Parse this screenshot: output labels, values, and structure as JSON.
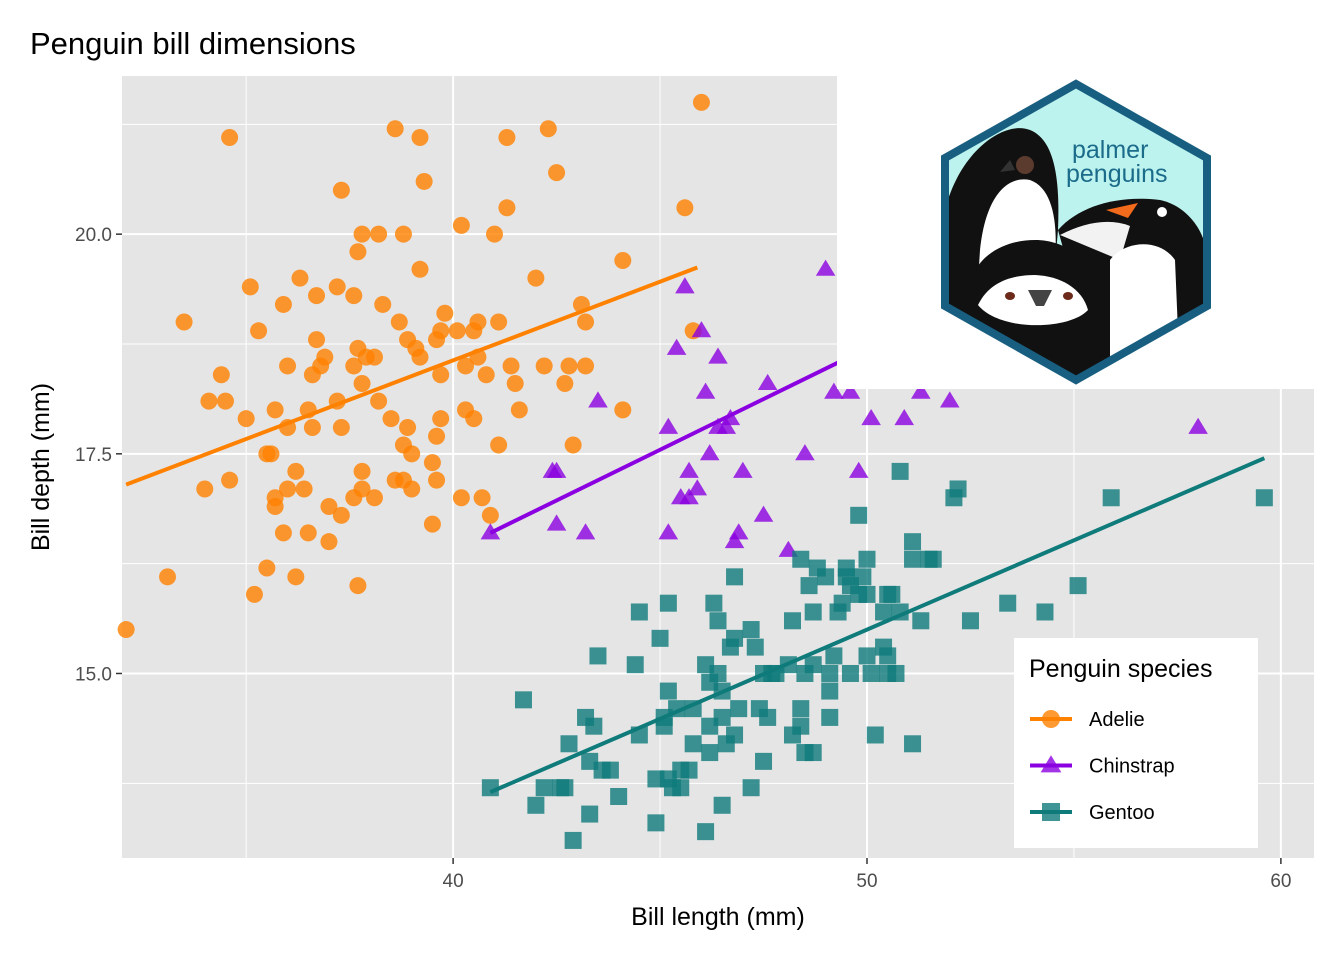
{
  "chart_data": {
    "type": "scatter",
    "title": "Penguin bill dimensions",
    "xlabel": "Bill length (mm)",
    "ylabel": "Bill depth (mm)",
    "xlim": [
      32.0,
      60.8
    ],
    "ylim": [
      12.9,
      21.8
    ],
    "x_ticks": [
      {
        "v": 40,
        "label": "40"
      },
      {
        "v": 50,
        "label": "50"
      },
      {
        "v": 60,
        "label": "60"
      }
    ],
    "y_ticks": [
      {
        "v": 15,
        "label": "15.0"
      },
      {
        "v": 17.5,
        "label": "17.5"
      },
      {
        "v": 20,
        "label": "20.0"
      }
    ],
    "grid": true,
    "legend": {
      "title": "Penguin species",
      "position": "bottom-right"
    },
    "logo_text": [
      "palmer",
      "penguins"
    ],
    "series": [
      {
        "name": "Adelie",
        "color": "#FF8100",
        "marker": "circle",
        "fit": [
          [
            32.1,
            17.15
          ],
          [
            45.9,
            19.62
          ]
        ],
        "points": [
          [
            32.1,
            15.5
          ],
          [
            33.1,
            16.1
          ],
          [
            33.5,
            19.0
          ],
          [
            34.0,
            17.1
          ],
          [
            34.1,
            18.1
          ],
          [
            34.4,
            18.4
          ],
          [
            34.5,
            18.1
          ],
          [
            34.6,
            21.1
          ],
          [
            34.6,
            17.2
          ],
          [
            35.0,
            17.9
          ],
          [
            35.1,
            19.4
          ],
          [
            35.2,
            15.9
          ],
          [
            35.3,
            18.9
          ],
          [
            35.5,
            17.5
          ],
          [
            35.5,
            16.2
          ],
          [
            35.6,
            17.5
          ],
          [
            35.7,
            16.9
          ],
          [
            35.7,
            18.0
          ],
          [
            35.7,
            17.0
          ],
          [
            35.9,
            16.6
          ],
          [
            35.9,
            19.2
          ],
          [
            36.0,
            17.8
          ],
          [
            36.0,
            17.1
          ],
          [
            36.0,
            18.5
          ],
          [
            36.2,
            16.1
          ],
          [
            36.2,
            17.3
          ],
          [
            36.3,
            19.5
          ],
          [
            36.4,
            17.1
          ],
          [
            36.5,
            18.0
          ],
          [
            36.5,
            16.6
          ],
          [
            36.6,
            17.8
          ],
          [
            36.6,
            18.4
          ],
          [
            36.7,
            18.8
          ],
          [
            36.7,
            19.3
          ],
          [
            36.8,
            18.5
          ],
          [
            36.9,
            18.6
          ],
          [
            37.0,
            16.9
          ],
          [
            37.0,
            16.5
          ],
          [
            37.2,
            18.1
          ],
          [
            37.2,
            19.4
          ],
          [
            37.3,
            20.5
          ],
          [
            37.3,
            16.8
          ],
          [
            37.3,
            17.8
          ],
          [
            37.6,
            19.3
          ],
          [
            37.6,
            17.0
          ],
          [
            37.6,
            18.5
          ],
          [
            37.7,
            18.7
          ],
          [
            37.7,
            19.8
          ],
          [
            37.7,
            16.0
          ],
          [
            37.8,
            17.1
          ],
          [
            37.8,
            18.3
          ],
          [
            37.8,
            20.0
          ],
          [
            37.8,
            17.3
          ],
          [
            37.9,
            18.6
          ],
          [
            38.1,
            18.6
          ],
          [
            38.1,
            17.0
          ],
          [
            38.2,
            18.1
          ],
          [
            38.2,
            20.0
          ],
          [
            38.3,
            19.2
          ],
          [
            38.5,
            17.9
          ],
          [
            38.6,
            21.2
          ],
          [
            38.6,
            17.2
          ],
          [
            38.7,
            19.0
          ],
          [
            38.8,
            17.2
          ],
          [
            38.8,
            17.6
          ],
          [
            38.8,
            20.0
          ],
          [
            38.9,
            17.8
          ],
          [
            38.9,
            18.8
          ],
          [
            39.0,
            17.1
          ],
          [
            39.0,
            17.5
          ],
          [
            39.1,
            18.7
          ],
          [
            39.2,
            19.6
          ],
          [
            39.2,
            18.6
          ],
          [
            39.2,
            21.1
          ],
          [
            39.3,
            20.6
          ],
          [
            39.5,
            17.4
          ],
          [
            39.5,
            16.7
          ],
          [
            39.6,
            17.7
          ],
          [
            39.6,
            18.8
          ],
          [
            39.6,
            17.2
          ],
          [
            39.7,
            18.4
          ],
          [
            39.7,
            18.9
          ],
          [
            39.7,
            17.9
          ],
          [
            39.8,
            19.1
          ],
          [
            40.1,
            18.9
          ],
          [
            40.2,
            17.0
          ],
          [
            40.2,
            20.1
          ],
          [
            40.3,
            18.0
          ],
          [
            40.3,
            18.5
          ],
          [
            40.5,
            17.9
          ],
          [
            40.5,
            18.9
          ],
          [
            40.6,
            18.6
          ],
          [
            40.6,
            19.0
          ],
          [
            40.7,
            17.0
          ],
          [
            40.8,
            18.4
          ],
          [
            40.9,
            16.8
          ],
          [
            41.0,
            20.0
          ],
          [
            41.1,
            17.6
          ],
          [
            41.1,
            19.0
          ],
          [
            41.3,
            21.1
          ],
          [
            41.3,
            20.3
          ],
          [
            41.4,
            18.5
          ],
          [
            41.5,
            18.3
          ],
          [
            41.6,
            18.0
          ],
          [
            42.0,
            19.5
          ],
          [
            42.2,
            18.5
          ],
          [
            42.3,
            21.2
          ],
          [
            42.5,
            20.7
          ],
          [
            42.7,
            18.3
          ],
          [
            42.8,
            18.5
          ],
          [
            42.9,
            17.6
          ],
          [
            43.1,
            19.2
          ],
          [
            43.2,
            18.5
          ],
          [
            43.2,
            19.0
          ],
          [
            44.1,
            19.7
          ],
          [
            44.1,
            18.0
          ],
          [
            45.6,
            20.3
          ],
          [
            45.8,
            18.9
          ],
          [
            46.0,
            21.5
          ]
        ]
      },
      {
        "name": "Chinstrap",
        "color": "#8B00E0",
        "marker": "triangle",
        "fit": [
          [
            40.9,
            16.6
          ],
          [
            51.3,
            19.0
          ]
        ],
        "points": [
          [
            40.9,
            16.6
          ],
          [
            42.4,
            17.3
          ],
          [
            42.5,
            17.3
          ],
          [
            42.5,
            16.7
          ],
          [
            43.2,
            16.6
          ],
          [
            43.5,
            18.1
          ],
          [
            45.2,
            17.8
          ],
          [
            45.2,
            16.6
          ],
          [
            45.4,
            18.7
          ],
          [
            45.5,
            17.0
          ],
          [
            45.6,
            19.4
          ],
          [
            45.7,
            17.3
          ],
          [
            45.7,
            17.0
          ],
          [
            45.9,
            17.1
          ],
          [
            46.0,
            18.9
          ],
          [
            46.1,
            18.2
          ],
          [
            46.2,
            17.5
          ],
          [
            46.4,
            17.8
          ],
          [
            46.4,
            18.6
          ],
          [
            46.6,
            17.8
          ],
          [
            46.7,
            17.9
          ],
          [
            46.8,
            16.5
          ],
          [
            46.9,
            16.6
          ],
          [
            47.0,
            17.3
          ],
          [
            47.5,
            16.8
          ],
          [
            47.6,
            18.3
          ],
          [
            48.1,
            16.4
          ],
          [
            48.5,
            17.5
          ],
          [
            49.0,
            19.6
          ],
          [
            49.2,
            18.2
          ],
          [
            49.6,
            18.2
          ],
          [
            49.8,
            17.3
          ],
          [
            50.1,
            17.9
          ],
          [
            50.9,
            17.9
          ],
          [
            51.3,
            18.2
          ],
          [
            52.0,
            18.1
          ],
          [
            58.0,
            17.8
          ]
        ]
      },
      {
        "name": "Gentoo",
        "color": "#0F7B7B",
        "marker": "square",
        "fit": [
          [
            40.9,
            13.65
          ],
          [
            59.6,
            17.45
          ]
        ],
        "points": [
          [
            40.9,
            13.7
          ],
          [
            41.7,
            14.7
          ],
          [
            42.0,
            13.5
          ],
          [
            42.2,
            13.7
          ],
          [
            42.6,
            13.7
          ],
          [
            42.7,
            13.7
          ],
          [
            42.8,
            14.2
          ],
          [
            42.9,
            13.1
          ],
          [
            43.2,
            14.5
          ],
          [
            43.3,
            13.4
          ],
          [
            43.3,
            14.0
          ],
          [
            43.4,
            14.4
          ],
          [
            43.5,
            15.2
          ],
          [
            43.6,
            13.9
          ],
          [
            43.8,
            13.9
          ],
          [
            44.0,
            13.6
          ],
          [
            44.4,
            15.1
          ],
          [
            44.5,
            15.7
          ],
          [
            44.5,
            14.3
          ],
          [
            44.9,
            13.3
          ],
          [
            44.9,
            13.8
          ],
          [
            45.0,
            15.4
          ],
          [
            45.1,
            14.5
          ],
          [
            45.1,
            14.4
          ],
          [
            45.2,
            15.8
          ],
          [
            45.2,
            14.8
          ],
          [
            45.2,
            13.8
          ],
          [
            45.3,
            13.7
          ],
          [
            45.4,
            14.6
          ],
          [
            45.5,
            13.9
          ],
          [
            45.5,
            13.7
          ],
          [
            45.7,
            13.9
          ],
          [
            45.8,
            14.6
          ],
          [
            45.8,
            14.2
          ],
          [
            46.1,
            13.2
          ],
          [
            46.1,
            15.1
          ],
          [
            46.2,
            14.1
          ],
          [
            46.2,
            14.4
          ],
          [
            46.2,
            14.9
          ],
          [
            46.3,
            15.8
          ],
          [
            46.4,
            15.6
          ],
          [
            46.4,
            15.0
          ],
          [
            46.5,
            14.5
          ],
          [
            46.5,
            14.8
          ],
          [
            46.5,
            13.5
          ],
          [
            46.6,
            14.2
          ],
          [
            46.7,
            15.3
          ],
          [
            46.8,
            14.3
          ],
          [
            46.8,
            15.4
          ],
          [
            46.8,
            16.1
          ],
          [
            46.9,
            14.6
          ],
          [
            47.2,
            13.7
          ],
          [
            47.2,
            15.5
          ],
          [
            47.3,
            15.3
          ],
          [
            47.4,
            14.6
          ],
          [
            47.5,
            14.0
          ],
          [
            47.5,
            15.0
          ],
          [
            47.6,
            14.5
          ],
          [
            47.7,
            15.0
          ],
          [
            47.8,
            15.0
          ],
          [
            48.1,
            15.1
          ],
          [
            48.2,
            14.3
          ],
          [
            48.2,
            15.6
          ],
          [
            48.4,
            14.6
          ],
          [
            48.4,
            16.3
          ],
          [
            48.4,
            14.4
          ],
          [
            48.5,
            14.1
          ],
          [
            48.5,
            15.0
          ],
          [
            48.6,
            16.0
          ],
          [
            48.7,
            14.1
          ],
          [
            48.7,
            15.1
          ],
          [
            48.7,
            15.7
          ],
          [
            48.8,
            16.2
          ],
          [
            49.0,
            16.1
          ],
          [
            49.1,
            14.8
          ],
          [
            49.1,
            14.5
          ],
          [
            49.1,
            15.0
          ],
          [
            49.2,
            15.2
          ],
          [
            49.3,
            15.7
          ],
          [
            49.4,
            15.8
          ],
          [
            49.5,
            16.1
          ],
          [
            49.5,
            16.2
          ],
          [
            49.6,
            15.0
          ],
          [
            49.6,
            16.0
          ],
          [
            49.8,
            15.9
          ],
          [
            49.8,
            16.8
          ],
          [
            49.9,
            16.1
          ],
          [
            50.0,
            15.2
          ],
          [
            50.0,
            15.9
          ],
          [
            50.0,
            16.3
          ],
          [
            50.1,
            15.0
          ],
          [
            50.2,
            14.3
          ],
          [
            50.4,
            15.3
          ],
          [
            50.4,
            15.7
          ],
          [
            50.5,
            15.0
          ],
          [
            50.5,
            15.9
          ],
          [
            50.5,
            15.2
          ],
          [
            50.6,
            15.9
          ],
          [
            50.7,
            15.0
          ],
          [
            50.8,
            15.7
          ],
          [
            50.8,
            17.3
          ],
          [
            51.1,
            14.2
          ],
          [
            51.1,
            16.3
          ],
          [
            51.1,
            16.5
          ],
          [
            51.3,
            15.6
          ],
          [
            51.5,
            16.3
          ],
          [
            51.6,
            16.3
          ],
          [
            52.1,
            17.0
          ],
          [
            52.2,
            17.1
          ],
          [
            52.5,
            15.6
          ],
          [
            53.4,
            15.8
          ],
          [
            54.3,
            15.7
          ],
          [
            55.1,
            16.0
          ],
          [
            55.9,
            17.0
          ],
          [
            59.6,
            17.0
          ]
        ]
      }
    ]
  }
}
